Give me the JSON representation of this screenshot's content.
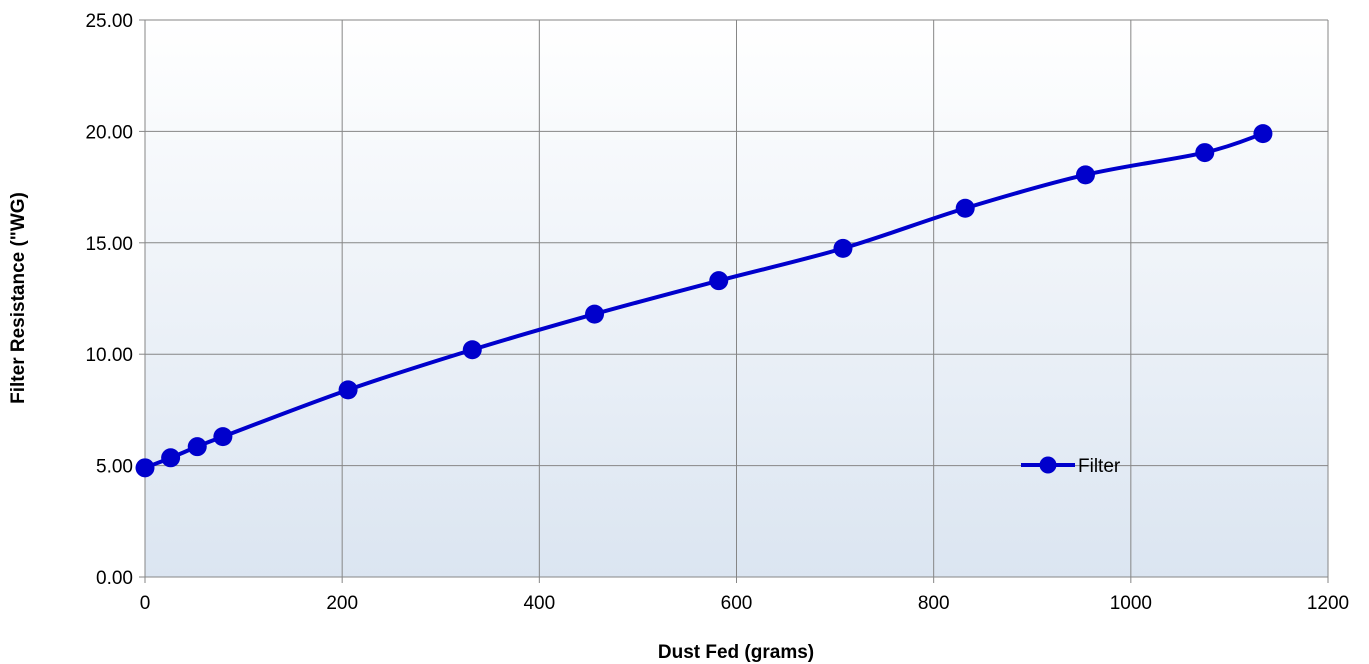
{
  "chart_data": {
    "type": "line",
    "xlabel": "Dust Fed (grams)",
    "ylabel": "Filter Resistance (\"WG)",
    "xlim": [
      0,
      1200
    ],
    "ylim": [
      0,
      25
    ],
    "x_ticks": [
      "0",
      "200",
      "400",
      "600",
      "800",
      "1000",
      "1200"
    ],
    "y_ticks": [
      "0.00",
      "5.00",
      "10.00",
      "15.00",
      "20.00",
      "25.00"
    ],
    "grid": true,
    "legend_position": "inside-lower-right",
    "series": [
      {
        "name": "Filter",
        "color": "#0000cc",
        "marker": "circle",
        "smooth": true,
        "points": [
          {
            "x": 0,
            "y": 4.9
          },
          {
            "x": 26,
            "y": 5.35
          },
          {
            "x": 53,
            "y": 5.85
          },
          {
            "x": 79,
            "y": 6.3
          },
          {
            "x": 206,
            "y": 8.4
          },
          {
            "x": 332,
            "y": 10.2
          },
          {
            "x": 456,
            "y": 11.8
          },
          {
            "x": 582,
            "y": 13.3
          },
          {
            "x": 708,
            "y": 14.75
          },
          {
            "x": 832,
            "y": 16.55
          },
          {
            "x": 954,
            "y": 18.05
          },
          {
            "x": 1075,
            "y": 19.05
          },
          {
            "x": 1134,
            "y": 19.9
          }
        ]
      }
    ]
  }
}
